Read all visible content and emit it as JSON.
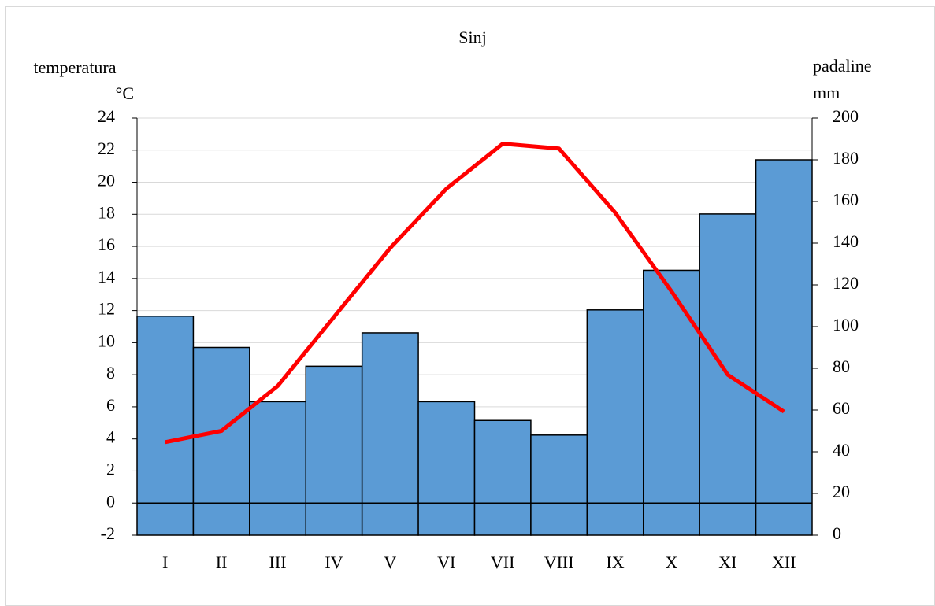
{
  "chart_data": {
    "type": "bar",
    "title": "Sinj",
    "ylabel": "temperatura",
    "yunit": "°C",
    "y2label": "padaline",
    "y2unit": "mm",
    "categories": [
      "I",
      "II",
      "III",
      "IV",
      "V",
      "VI",
      "VII",
      "VIII",
      "IX",
      "X",
      "XI",
      "XII"
    ],
    "series": [
      {
        "type": "bar",
        "axis": "y2",
        "color": "#5b9bd5",
        "values": [
          105,
          90,
          64,
          81,
          97,
          64,
          55,
          48,
          108,
          127,
          154,
          180
        ]
      },
      {
        "type": "line",
        "axis": "y",
        "color": "#ff0000",
        "values": [
          3.8,
          4.5,
          7.3,
          11.6,
          15.9,
          19.6,
          22.4,
          22.1,
          18.1,
          13.2,
          8.0,
          5.7
        ]
      }
    ],
    "ylim": [
      -2,
      24
    ],
    "yticks": [
      -2,
      0,
      2,
      4,
      6,
      8,
      10,
      12,
      14,
      16,
      18,
      20,
      22,
      24
    ],
    "y2lim": [
      0,
      200
    ],
    "y2ticks": [
      0,
      20,
      40,
      60,
      80,
      100,
      120,
      140,
      160,
      180,
      200
    ],
    "grid": true,
    "zero_line": true
  }
}
